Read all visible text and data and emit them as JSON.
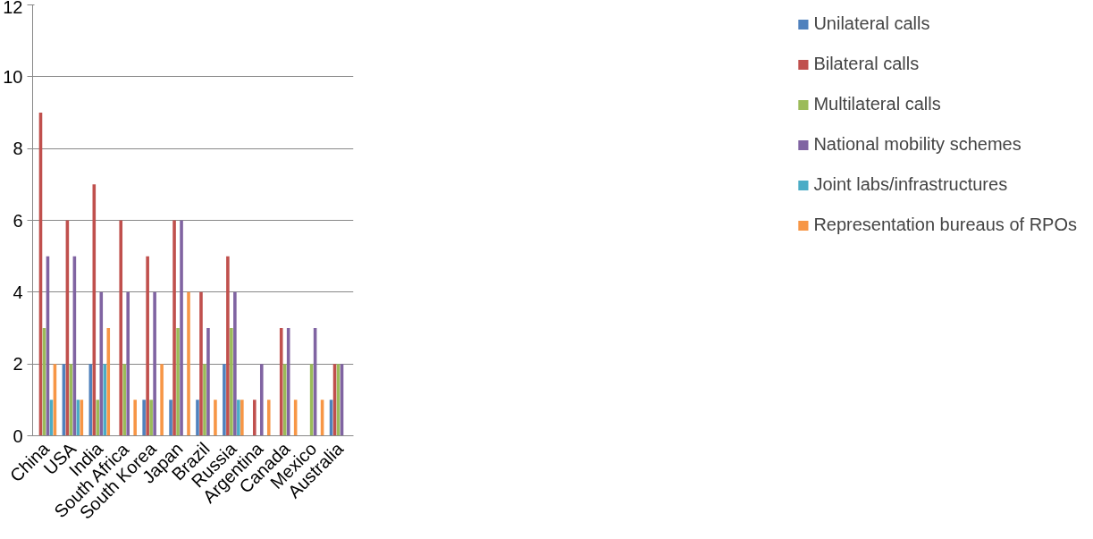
{
  "chart_data": {
    "type": "bar",
    "categories": [
      "China",
      "USA",
      "India",
      "South Africa",
      "South Korea",
      "Japan",
      "Brazil",
      "Russia",
      "Argentina",
      "Canada",
      "Mexico",
      "Australia"
    ],
    "series": [
      {
        "name": "Unilateral calls",
        "color": "#4f81bd",
        "values": [
          0,
          2,
          2,
          0,
          1,
          1,
          1,
          2,
          0,
          0,
          0,
          1
        ]
      },
      {
        "name": "Bilateral calls",
        "color": "#c0504d",
        "values": [
          9,
          6,
          7,
          6,
          5,
          6,
          4,
          5,
          1,
          3,
          0,
          2
        ]
      },
      {
        "name": "Multilateral calls",
        "color": "#9bbb59",
        "values": [
          3,
          2,
          1,
          2,
          1,
          3,
          2,
          3,
          0,
          2,
          2,
          2
        ]
      },
      {
        "name": "National mobility schemes",
        "color": "#8064a2",
        "values": [
          5,
          5,
          4,
          4,
          4,
          6,
          3,
          4,
          2,
          3,
          3,
          2
        ]
      },
      {
        "name": "Joint labs/infrastructures",
        "color": "#4bacc6",
        "values": [
          1,
          1,
          2,
          0,
          0,
          0,
          0,
          1,
          0,
          0,
          0,
          0
        ]
      },
      {
        "name": "Representation bureaus of RPOs",
        "color": "#f79646",
        "values": [
          2,
          1,
          3,
          1,
          2,
          4,
          1,
          1,
          1,
          1,
          1,
          0
        ]
      }
    ],
    "ylim": [
      0,
      12
    ],
    "yticks": [
      0,
      2,
      4,
      6,
      8,
      10,
      12
    ],
    "grid": "y",
    "legend": "right"
  }
}
